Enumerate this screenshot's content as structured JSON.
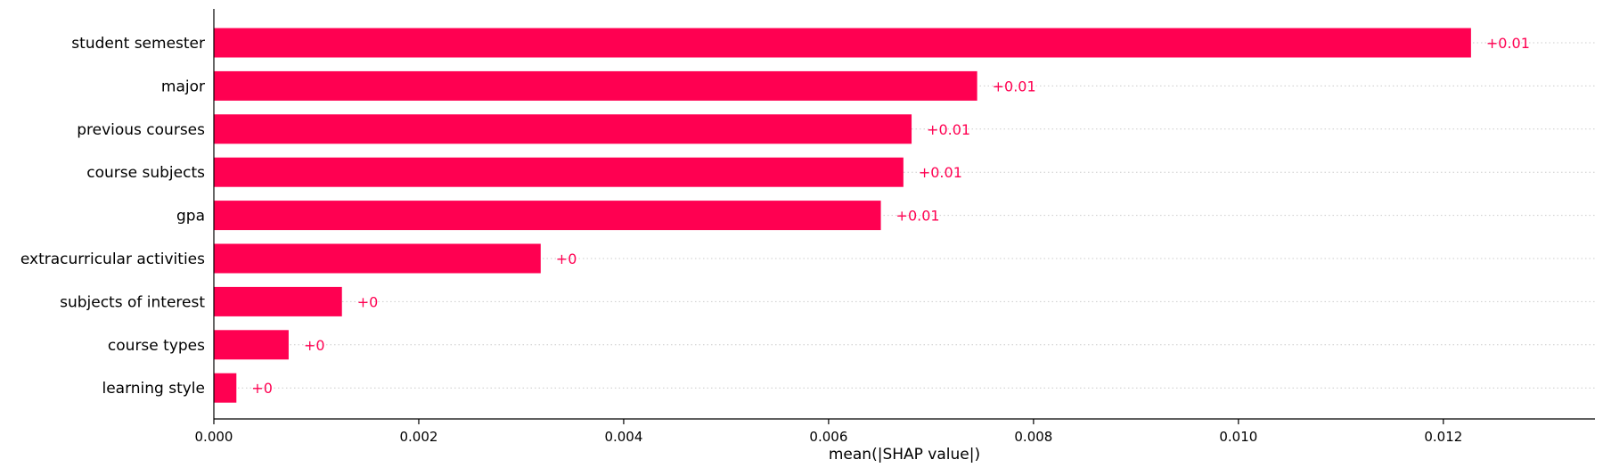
{
  "chart_data": {
    "type": "bar",
    "orientation": "horizontal",
    "categories": [
      "student semester",
      "major",
      "previous courses",
      "course subjects",
      "gpa",
      "extracurricular activities",
      "subjects of interest",
      "course types",
      "learning style"
    ],
    "values": [
      0.01227,
      0.00745,
      0.00681,
      0.00673,
      0.00651,
      0.00319,
      0.00125,
      0.00073,
      0.00022
    ],
    "data_labels": [
      "+0.01",
      "+0.01",
      "+0.01",
      "+0.01",
      "+0.01",
      "+0",
      "+0",
      "+0",
      "+0"
    ],
    "xlabel": "mean(|SHAP value|)",
    "ylabel": "",
    "xlim": [
      0,
      0.01348
    ],
    "xticks": [
      0,
      0.002,
      0.004,
      0.006,
      0.008,
      0.01,
      0.012
    ],
    "xtick_labels": [
      "0.000",
      "0.002",
      "0.004",
      "0.006",
      "0.008",
      "0.010",
      "0.012"
    ],
    "grid": false,
    "row_guides": "dotted",
    "colors": {
      "bar": "#ff0051",
      "data_label": "#ff0051",
      "axis": "#000000",
      "guide": "#cccccc"
    }
  }
}
